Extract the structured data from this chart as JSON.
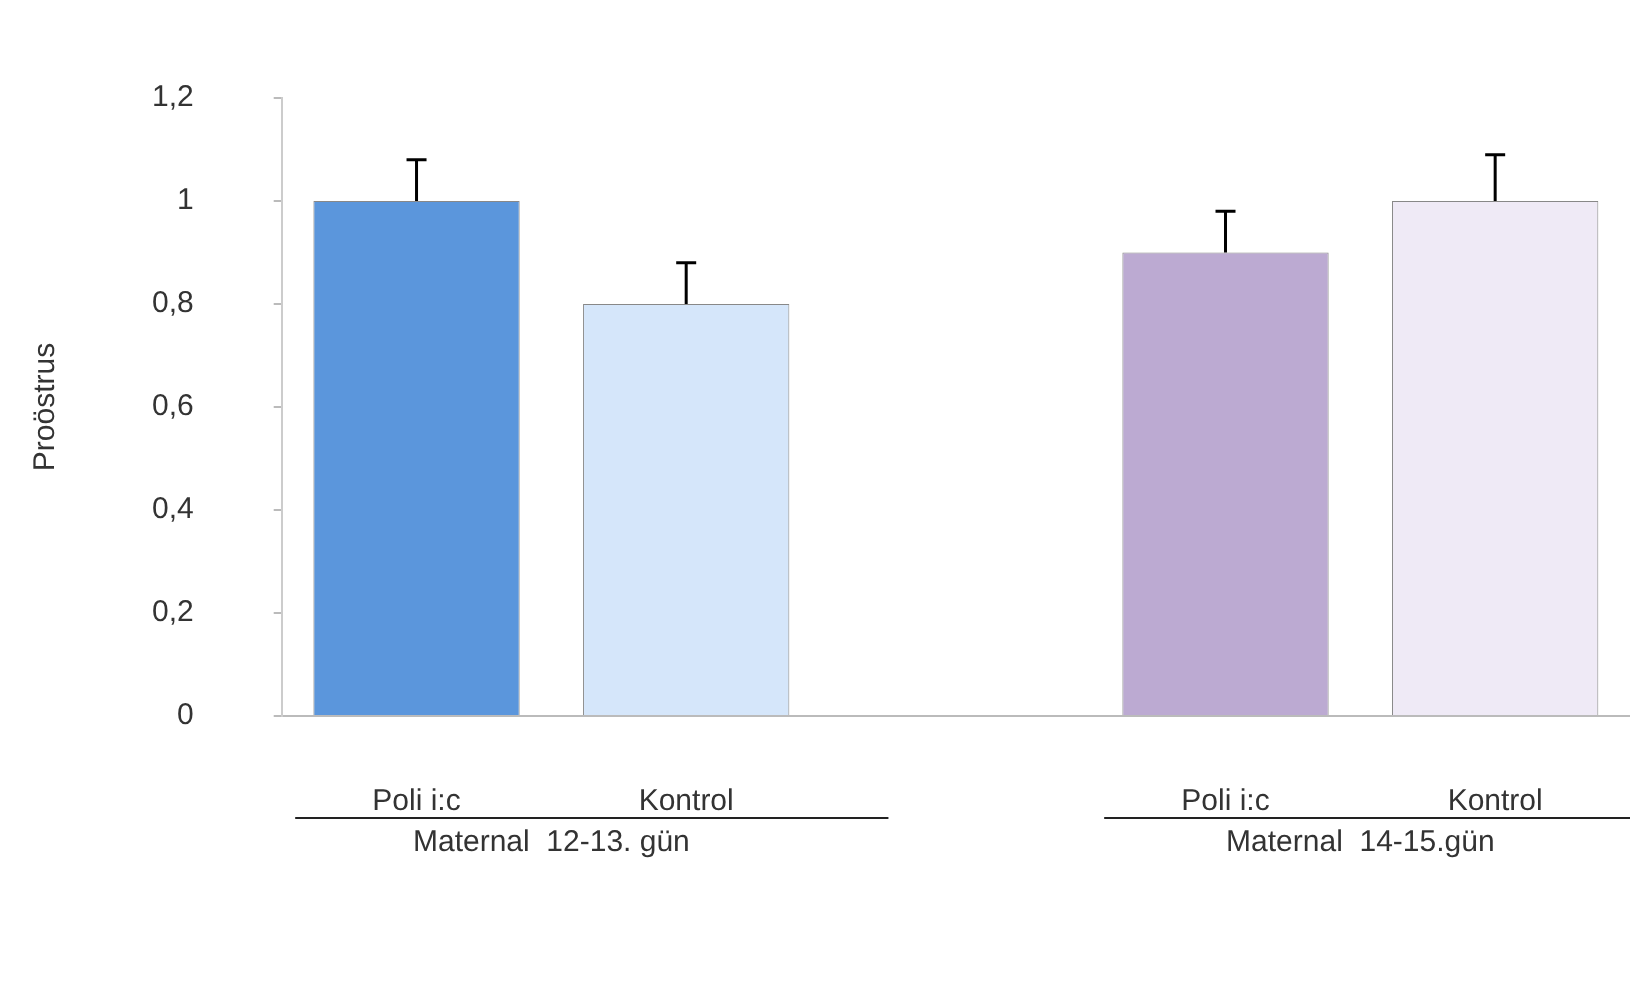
{
  "chart_data": {
    "type": "bar",
    "ylabel": "Proöstrus",
    "categories": [
      "Poli i:c",
      "Kontrol",
      null,
      "Poli i:c",
      "Kontrol"
    ],
    "values": [
      1,
      0.8,
      null,
      0.9,
      1
    ],
    "colors": [
      "#5b96dc",
      "#d5e6fa",
      "#cccccc",
      "#bcaad2",
      "#efeaf6"
    ],
    "errors": [
      0.08,
      0.08,
      null,
      0.08,
      0.09
    ],
    "ylim": [
      0,
      1.2
    ],
    "yticks": [
      0,
      {
        "value": 0.2,
        "label": "0,2"
      },
      {
        "value": 0.4,
        "label": "0,4"
      },
      {
        "value": 0.6,
        "label": "0,6"
      },
      {
        "value": 0.8,
        "label": "0,8"
      },
      1,
      {
        "value": 1.2,
        "label": "1,2"
      }
    ],
    "annotations": [
      "Maternal  12-13. gün",
      "Maternal  14-15.gün"
    ],
    "grid": false,
    "legend": false
  }
}
